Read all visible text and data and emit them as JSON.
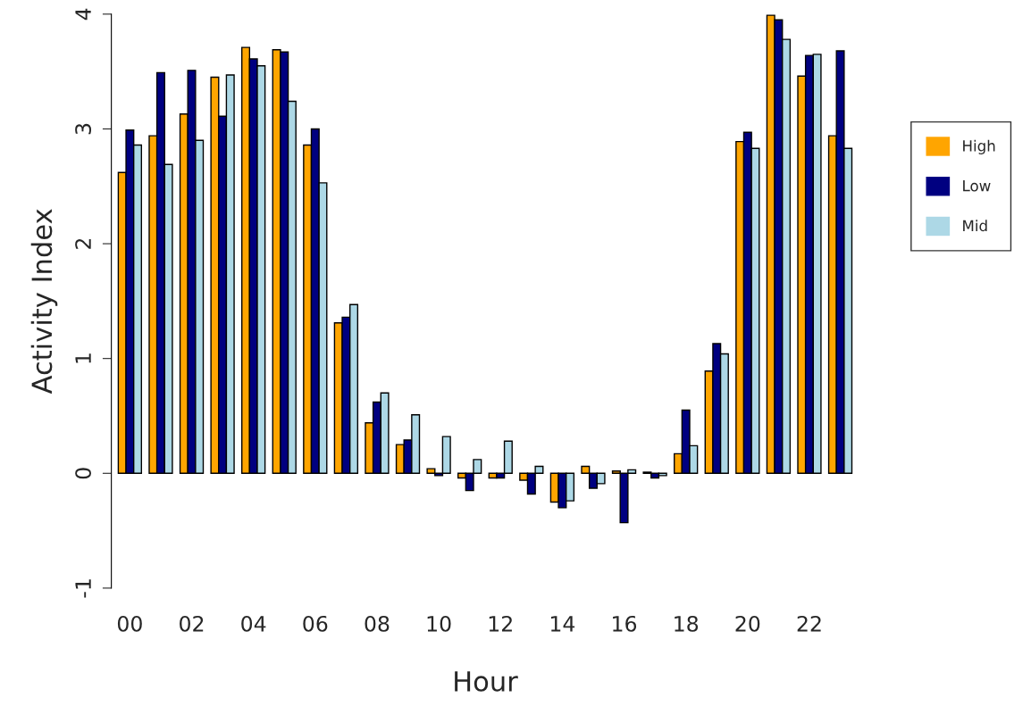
{
  "chart_data": {
    "type": "bar",
    "xlabel": "Hour",
    "ylabel": "Activity Index",
    "categories": [
      "00",
      null,
      "02",
      null,
      "04",
      null,
      "06",
      null,
      "08",
      null,
      "10",
      null,
      "12",
      null,
      "14",
      null,
      "16",
      null,
      "18",
      null,
      "20",
      null,
      "22",
      null
    ],
    "series": [
      {
        "name": "High",
        "color": "#ffa500",
        "values": [
          2.62,
          2.94,
          3.13,
          3.45,
          3.71,
          3.69,
          2.86,
          1.31,
          0.44,
          0.25,
          0.04,
          -0.04,
          -0.04,
          -0.06,
          -0.25,
          0.06,
          0.02,
          0.01,
          0.17,
          0.89,
          2.89,
          3.99,
          3.46,
          2.94
        ]
      },
      {
        "name": "Low",
        "color": "#000080",
        "values": [
          2.99,
          3.49,
          3.51,
          3.11,
          3.61,
          3.67,
          3.0,
          1.36,
          0.62,
          0.29,
          -0.02,
          -0.15,
          -0.04,
          -0.18,
          -0.3,
          -0.13,
          -0.43,
          -0.04,
          0.55,
          1.13,
          2.97,
          3.95,
          3.64,
          3.68
        ]
      },
      {
        "name": "Mid",
        "color": "#add8e6",
        "values": [
          2.86,
          2.69,
          2.9,
          3.47,
          3.55,
          3.24,
          2.53,
          1.47,
          0.7,
          0.51,
          0.32,
          0.12,
          0.28,
          0.06,
          -0.24,
          -0.09,
          0.03,
          -0.02,
          0.24,
          1.04,
          2.83,
          3.78,
          3.65,
          2.83
        ]
      }
    ],
    "ylim": [
      -1,
      4
    ],
    "yticks": [
      -1,
      0,
      1,
      2,
      3,
      4
    ],
    "grid": false,
    "legend": "right"
  }
}
